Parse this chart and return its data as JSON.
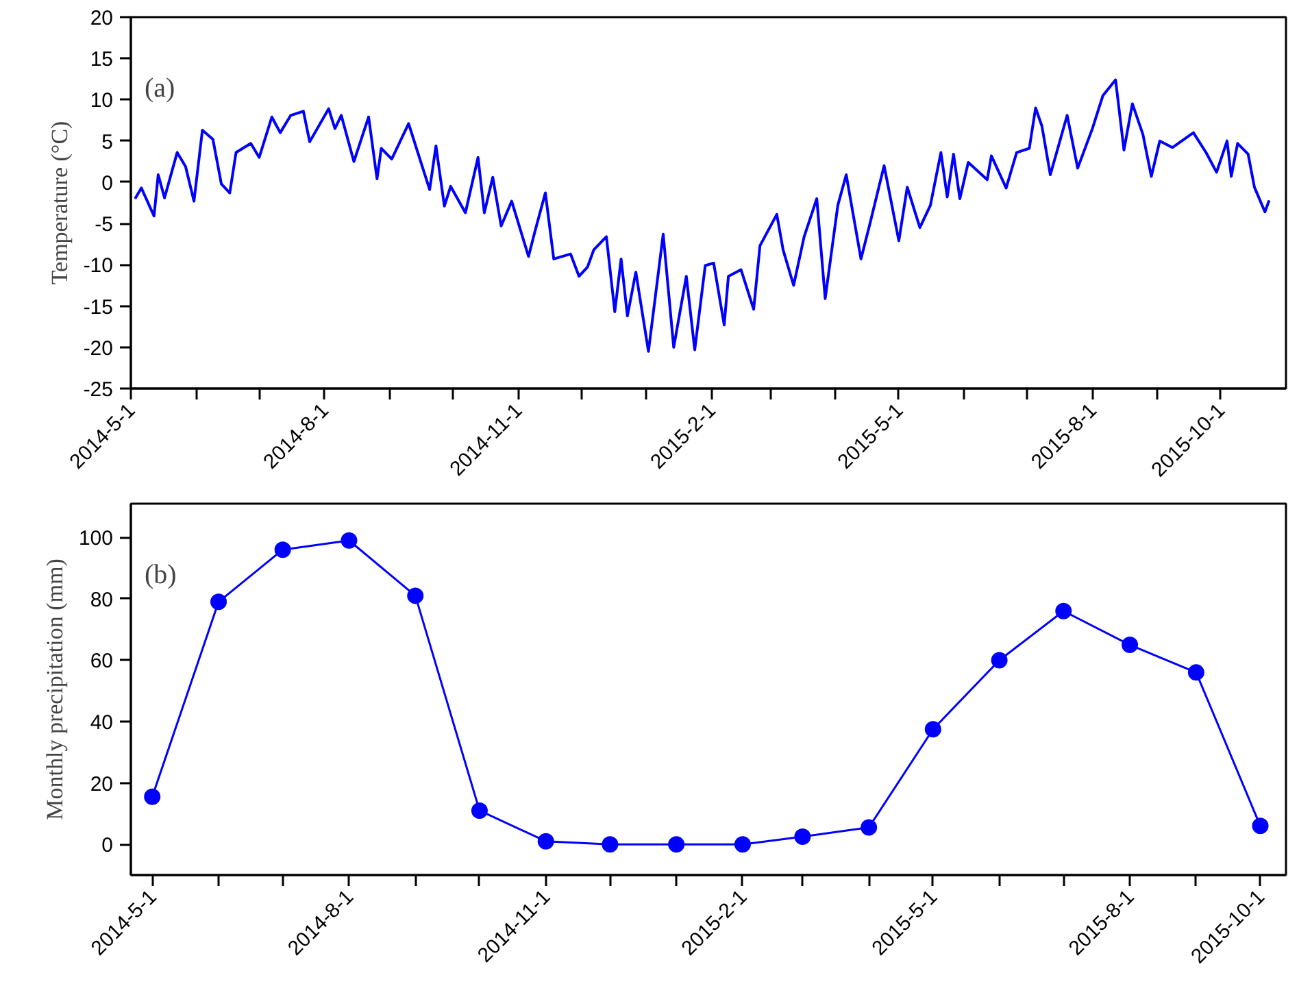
{
  "chart_data": [
    {
      "type": "line",
      "ylabel": "Temperature (°C)",
      "annotations": [
        "(a)"
      ],
      "marker": "none",
      "x": [
        "2014-05-03",
        "2014-05-06",
        "2014-05-12",
        "2014-05-14",
        "2014-05-17",
        "2014-05-23",
        "2014-05-27",
        "2014-05-31",
        "2014-06-04",
        "2014-06-09",
        "2014-06-13",
        "2014-06-17",
        "2014-06-20",
        "2014-06-27",
        "2014-07-01",
        "2014-07-07",
        "2014-07-11",
        "2014-07-16",
        "2014-07-22",
        "2014-07-25",
        "2014-08-03",
        "2014-08-06",
        "2014-08-09",
        "2014-08-15",
        "2014-08-22",
        "2014-08-26",
        "2014-08-28",
        "2014-09-02",
        "2014-09-10",
        "2014-09-20",
        "2014-09-23",
        "2014-09-27",
        "2014-09-30",
        "2014-10-07",
        "2014-10-13",
        "2014-10-16",
        "2014-10-20",
        "2014-10-24",
        "2014-10-29",
        "2014-11-06",
        "2014-11-09",
        "2014-11-14",
        "2014-11-18",
        "2014-11-26",
        "2014-11-30",
        "2014-12-04",
        "2014-12-07",
        "2014-12-13",
        "2014-12-17",
        "2014-12-20",
        "2014-12-23",
        "2014-12-27",
        "2015-01-02",
        "2015-01-09",
        "2015-01-14",
        "2015-01-20",
        "2015-01-24",
        "2015-01-29",
        "2015-02-02",
        "2015-02-07",
        "2015-02-09",
        "2015-02-15",
        "2015-02-21",
        "2015-02-24",
        "2015-03-04",
        "2015-03-07",
        "2015-03-12",
        "2015-03-17",
        "2015-03-23",
        "2015-03-27",
        "2015-04-02",
        "2015-04-06",
        "2015-04-13",
        "2015-04-17",
        "2015-04-24",
        "2015-05-01",
        "2015-05-05",
        "2015-05-11",
        "2015-05-16",
        "2015-05-21",
        "2015-05-24",
        "2015-05-27",
        "2015-05-30",
        "2015-06-03",
        "2015-06-12",
        "2015-06-14",
        "2015-06-21",
        "2015-06-26",
        "2015-07-02",
        "2015-07-05",
        "2015-07-08",
        "2015-07-12",
        "2015-07-20",
        "2015-07-25",
        "2015-08-01",
        "2015-08-06",
        "2015-08-12",
        "2015-08-16",
        "2015-08-20",
        "2015-08-25",
        "2015-08-29",
        "2015-09-02",
        "2015-09-08",
        "2015-09-18",
        "2015-09-24",
        "2015-09-29",
        "2015-10-04",
        "2015-10-06",
        "2015-10-09",
        "2015-10-14",
        "2015-10-17",
        "2015-10-22",
        "2015-10-24"
      ],
      "series": [
        {
          "color": "#0000ff",
          "values": [
            -2.0,
            -0.7,
            -4.1,
            0.9,
            -1.9,
            3.6,
            1.9,
            -2.3,
            6.3,
            5.2,
            -0.2,
            -1.3,
            3.6,
            4.7,
            3.0,
            7.9,
            6.0,
            8.1,
            8.6,
            4.9,
            8.9,
            6.5,
            8.1,
            2.5,
            7.9,
            0.4,
            4.1,
            2.8,
            7.1,
            -0.9,
            4.4,
            -2.9,
            -0.5,
            -3.7,
            3.0,
            -3.7,
            0.6,
            -5.3,
            -2.3,
            -9.0,
            -6.0,
            -1.3,
            -9.3,
            -8.7,
            -11.4,
            -10.3,
            -8.2,
            -6.6,
            -15.7,
            -9.3,
            -16.2,
            -10.9,
            -20.5,
            -6.3,
            -20.0,
            -11.4,
            -20.3,
            -10.1,
            -9.8,
            -17.3,
            -11.4,
            -10.6,
            -15.4,
            -7.7,
            -3.9,
            -8.2,
            -12.5,
            -6.6,
            -2.0,
            -14.1,
            -2.8,
            0.9,
            -9.3,
            -5.3,
            2.0,
            -7.1,
            -0.6,
            -5.5,
            -2.8,
            3.6,
            -1.8,
            3.4,
            -2.0,
            2.4,
            0.3,
            3.2,
            -0.7,
            3.6,
            4.1,
            9.0,
            6.8,
            0.9,
            8.1,
            1.7,
            6.5,
            10.5,
            12.4,
            3.9,
            9.5,
            5.8,
            0.7,
            5.0,
            4.2,
            6.0,
            3.6,
            1.2,
            5.0,
            0.7,
            4.7,
            3.4,
            -0.6,
            -3.6,
            -2.2
          ]
        }
      ],
      "xlim": [
        "2014-05-01",
        "2015-11-01"
      ],
      "xticks": [
        {
          "value": "2014-05-01",
          "label": "2014-5-1"
        },
        {
          "value": "2014-06-01",
          "label": null
        },
        {
          "value": "2014-07-01",
          "label": null
        },
        {
          "value": "2014-08-01",
          "label": "2014-8-1"
        },
        {
          "value": "2014-09-01",
          "label": null
        },
        {
          "value": "2014-10-01",
          "label": null
        },
        {
          "value": "2014-11-01",
          "label": "2014-11-1"
        },
        {
          "value": "2014-12-01",
          "label": null
        },
        {
          "value": "2015-01-01",
          "label": null
        },
        {
          "value": "2015-02-01",
          "label": "2015-2-1"
        },
        {
          "value": "2015-03-01",
          "label": null
        },
        {
          "value": "2015-04-01",
          "label": null
        },
        {
          "value": "2015-05-01",
          "label": "2015-5-1"
        },
        {
          "value": "2015-06-01",
          "label": null
        },
        {
          "value": "2015-07-01",
          "label": null
        },
        {
          "value": "2015-08-01",
          "label": "2015-8-1"
        },
        {
          "value": "2015-09-01",
          "label": null
        },
        {
          "value": "2015-10-01",
          "label": "2015-10-1"
        }
      ],
      "ylim": [
        -25,
        20
      ],
      "yticks": [
        -25,
        -20,
        -15,
        -10,
        -5,
        0,
        5,
        10,
        15,
        20
      ]
    },
    {
      "type": "line",
      "ylabel": "Monthly precipitation (mm)",
      "annotations": [
        "(b)"
      ],
      "marker": "circle",
      "x": [
        "2014-05-01",
        "2014-06-01",
        "2014-07-01",
        "2014-08-01",
        "2014-09-01",
        "2014-10-01",
        "2014-11-01",
        "2014-12-01",
        "2015-01-01",
        "2015-02-01",
        "2015-03-01",
        "2015-04-01",
        "2015-05-01",
        "2015-06-01",
        "2015-07-01",
        "2015-08-01",
        "2015-09-01",
        "2015-10-01"
      ],
      "series": [
        {
          "color": "#0000ff",
          "values": [
            15.5,
            79,
            96,
            99,
            81,
            11,
            1,
            0,
            0,
            0,
            2.5,
            5.5,
            37.5,
            60,
            76,
            65,
            56,
            6
          ]
        }
      ],
      "xlim": [
        "2014-04-21",
        "2015-10-13"
      ],
      "xticks": [
        {
          "value": "2014-05-01",
          "label": "2014-5-1"
        },
        {
          "value": "2014-06-01",
          "label": null
        },
        {
          "value": "2014-07-01",
          "label": null
        },
        {
          "value": "2014-08-01",
          "label": "2014-8-1"
        },
        {
          "value": "2014-09-01",
          "label": null
        },
        {
          "value": "2014-10-01",
          "label": null
        },
        {
          "value": "2014-11-01",
          "label": "2014-11-1"
        },
        {
          "value": "2014-12-01",
          "label": null
        },
        {
          "value": "2015-01-01",
          "label": null
        },
        {
          "value": "2015-02-01",
          "label": "2015-2-1"
        },
        {
          "value": "2015-03-01",
          "label": null
        },
        {
          "value": "2015-04-01",
          "label": null
        },
        {
          "value": "2015-05-01",
          "label": "2015-5-1"
        },
        {
          "value": "2015-06-01",
          "label": null
        },
        {
          "value": "2015-07-01",
          "label": null
        },
        {
          "value": "2015-08-01",
          "label": "2015-8-1"
        },
        {
          "value": "2015-09-01",
          "label": null
        },
        {
          "value": "2015-10-01",
          "label": "2015-10-1"
        }
      ],
      "ylim": [
        -10,
        111
      ],
      "yticks": [
        0,
        20,
        40,
        60,
        80,
        100
      ]
    }
  ]
}
